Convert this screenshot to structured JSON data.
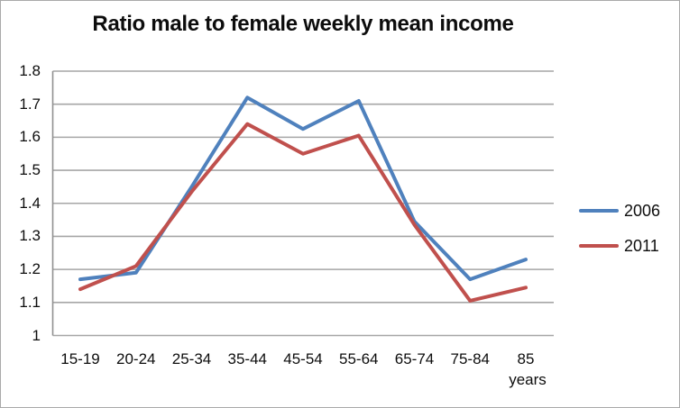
{
  "colors": {
    "grid": "#a6a6a6",
    "axis": "#8f8f8f",
    "frame_border": "#a9a9a9",
    "background": "#ffffff",
    "text": "#0d0d0d",
    "series_2006": "#4f81bd",
    "series_2011": "#c0504d"
  },
  "chart_data": {
    "type": "line",
    "title": "Ratio male to female weekly mean income",
    "categories": [
      "15-19",
      "20-24",
      "25-34",
      "35-44",
      "45-54",
      "55-64",
      "65-74",
      "75-84",
      "85"
    ],
    "x_unit_label": "years",
    "xlabel": "",
    "ylabel": "",
    "ylim": [
      1.0,
      1.8
    ],
    "y_ticks": [
      1,
      1.1,
      1.2,
      1.3,
      1.4,
      1.5,
      1.6,
      1.7,
      1.8
    ],
    "grid": "horizontal-only",
    "legend_position": "right-middle",
    "series": [
      {
        "name": "2006",
        "color": "#4f81bd",
        "values": [
          1.17,
          1.19,
          1.45,
          1.72,
          1.625,
          1.71,
          1.345,
          1.17,
          1.23
        ]
      },
      {
        "name": "2011",
        "color": "#c0504d",
        "values": [
          1.14,
          1.21,
          1.435,
          1.64,
          1.55,
          1.605,
          1.335,
          1.105,
          1.145
        ]
      }
    ]
  }
}
